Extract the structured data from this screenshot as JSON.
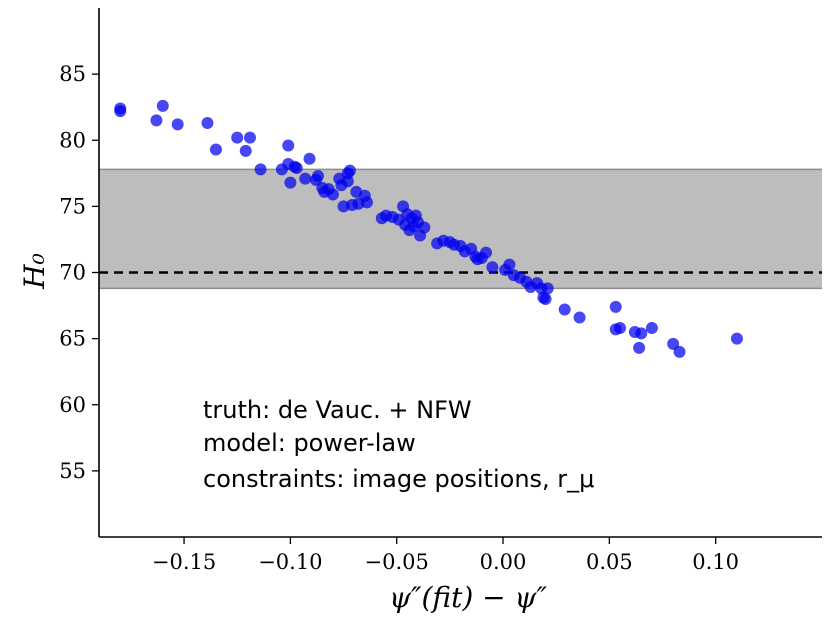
{
  "chart_data": {
    "type": "scatter",
    "title": "",
    "xlabel": "ψ″(fit) − ψ″",
    "ylabel": "H₀",
    "xlim": [
      -0.19,
      0.15
    ],
    "ylim": [
      50,
      90
    ],
    "xticks": [
      -0.15,
      -0.1,
      -0.05,
      0.0,
      0.05,
      0.1
    ],
    "xtick_labels": [
      "−0.15",
      "−0.10",
      "−0.05",
      "0.00",
      "0.05",
      "0.10"
    ],
    "yticks": [
      55,
      60,
      65,
      70,
      75,
      80,
      85
    ],
    "ytick_labels": [
      "55",
      "60",
      "65",
      "70",
      "75",
      "80",
      "85"
    ],
    "grid": false,
    "colors": {
      "points": "#0000ee",
      "band": "#bdbdbd",
      "band_edge": "#8c8c8c",
      "reference": "#000000"
    },
    "band": {
      "y_low": 68.8,
      "y_high": 77.8
    },
    "reference_line": {
      "y": 70.0,
      "style": "dashed"
    },
    "annotations": [
      "truth: de Vauc. + NFW",
      "model: power-law",
      "constraints: image positions, r_μ"
    ],
    "series": [
      {
        "x": [
          -0.18,
          -0.18,
          -0.163,
          -0.16,
          -0.153,
          -0.139,
          -0.135,
          -0.125,
          -0.121,
          -0.119,
          -0.114,
          -0.104,
          -0.101,
          -0.101,
          -0.1,
          -0.098,
          -0.097,
          -0.093,
          -0.091,
          -0.088,
          -0.087,
          -0.085,
          -0.084,
          -0.082,
          -0.08,
          -0.077,
          -0.076,
          -0.075,
          -0.073,
          -0.073,
          -0.072,
          -0.071,
          -0.069,
          -0.068,
          -0.065,
          -0.064,
          -0.057,
          -0.055,
          -0.052,
          -0.049,
          -0.047,
          -0.046,
          -0.045,
          -0.044,
          -0.043,
          -0.042,
          -0.041,
          -0.04,
          -0.039,
          -0.037,
          -0.031,
          -0.028,
          -0.025,
          -0.023,
          -0.02,
          -0.018,
          -0.015,
          -0.013,
          -0.012,
          -0.01,
          -0.008,
          -0.005,
          0.001,
          0.003,
          0.005,
          0.008,
          0.011,
          0.013,
          0.016,
          0.018,
          0.019,
          0.02,
          0.021,
          0.029,
          0.036,
          0.053,
          0.053,
          0.055,
          0.062,
          0.064,
          0.065,
          0.07,
          0.08,
          0.083,
          0.11
        ],
        "y": [
          82.4,
          82.2,
          81.5,
          82.6,
          81.2,
          81.3,
          79.3,
          80.2,
          79.2,
          80.2,
          77.8,
          77.8,
          79.6,
          78.2,
          76.8,
          78.0,
          77.9,
          77.1,
          78.6,
          77.0,
          77.3,
          76.4,
          76.1,
          76.3,
          75.9,
          77.1,
          76.6,
          75.0,
          76.9,
          77.5,
          77.7,
          75.1,
          76.1,
          75.2,
          75.8,
          75.3,
          74.1,
          74.3,
          74.2,
          74.0,
          75.0,
          73.6,
          74.4,
          73.2,
          74.1,
          73.5,
          74.3,
          73.8,
          72.8,
          73.4,
          72.2,
          72.4,
          72.3,
          72.1,
          72.0,
          71.6,
          71.8,
          71.2,
          71.0,
          71.1,
          71.5,
          70.4,
          70.2,
          70.6,
          69.8,
          69.6,
          69.3,
          68.9,
          69.2,
          68.8,
          68.1,
          68.0,
          68.8,
          67.2,
          66.6,
          67.4,
          65.7,
          65.8,
          65.5,
          64.3,
          65.4,
          65.8,
          64.6,
          64.0,
          65.0
        ]
      }
    ]
  }
}
